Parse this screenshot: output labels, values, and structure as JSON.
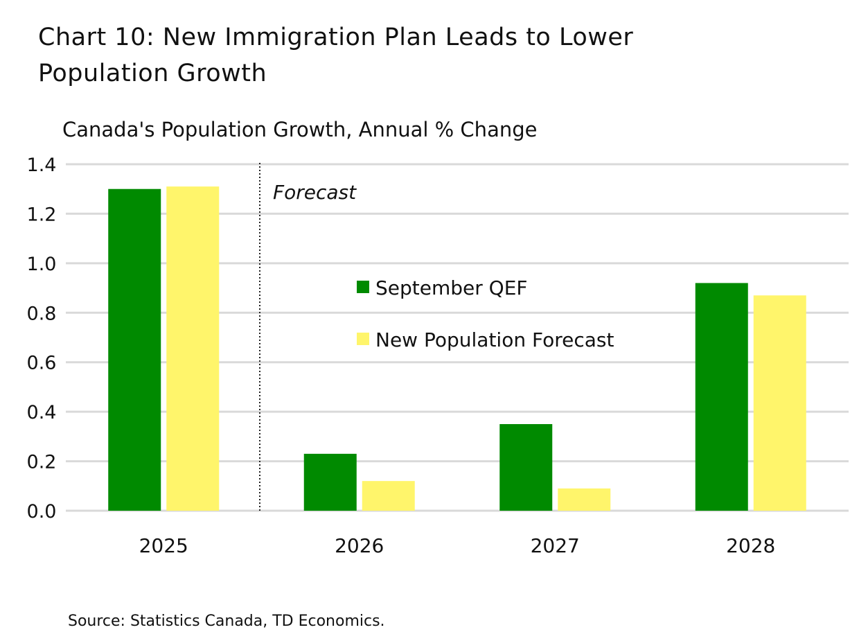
{
  "title": "Chart 10: New Immigration Plan Leads to Lower Population Growth",
  "source": "Source: Statistics Canada, TD Economics.",
  "chart_data": {
    "type": "bar",
    "title": "Chart 10: New Immigration Plan Leads to Lower Population Growth",
    "subtitle": "Canada's Population Growth, Annual % Change",
    "categories": [
      "2025",
      "2026",
      "2027",
      "2028"
    ],
    "series": [
      {
        "name": "September QEF",
        "color": "#008a00",
        "values": [
          1.3,
          0.23,
          0.35,
          0.92
        ]
      },
      {
        "name": "New Population Forecast",
        "color": "#fff56b",
        "values": [
          1.31,
          0.12,
          0.09,
          0.87
        ]
      }
    ],
    "ylim": [
      0,
      1.4
    ],
    "yticks": [
      "0.0",
      "0.2",
      "0.4",
      "0.6",
      "0.8",
      "1.0",
      "1.2",
      "1.4"
    ],
    "grid": true,
    "legend": "center",
    "annotation": "Forecast",
    "xlabel": "",
    "ylabel": ""
  }
}
